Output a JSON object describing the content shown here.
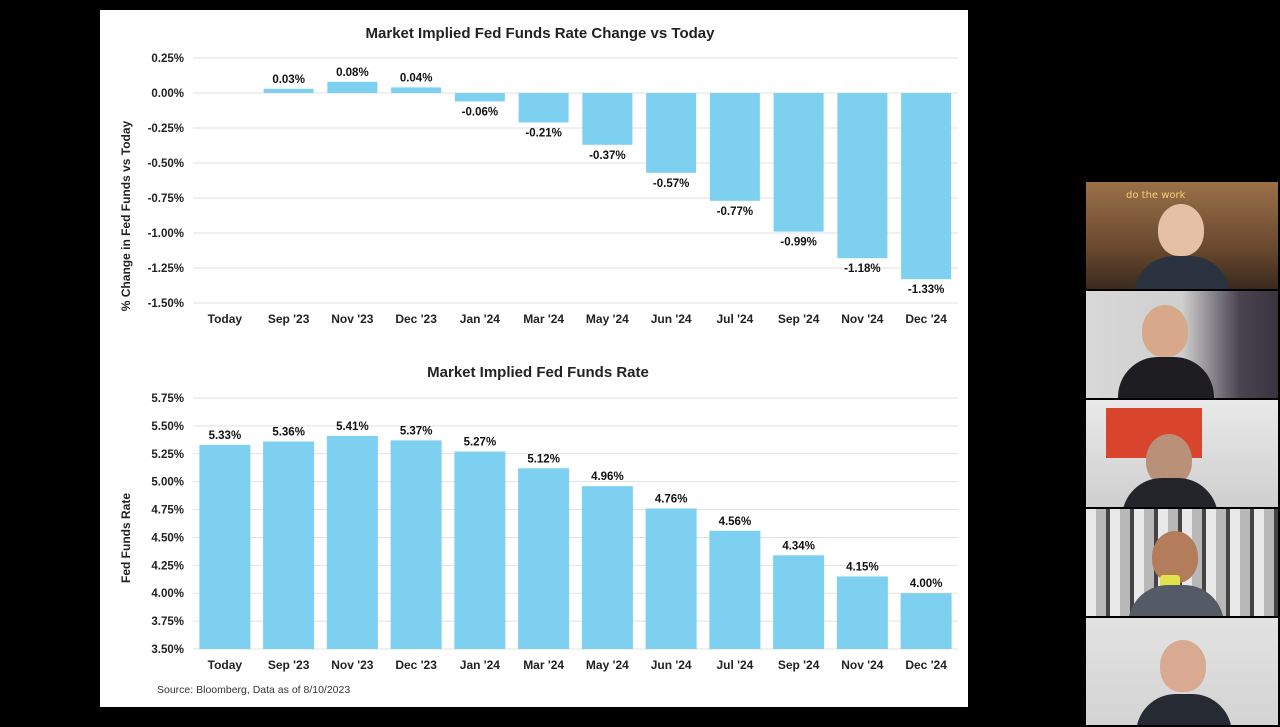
{
  "source_note": "Source: Bloomberg, Data as of 8/10/2023",
  "participants": [
    {
      "name": "participant-1",
      "sign_text": "do the work"
    },
    {
      "name": "participant-2"
    },
    {
      "name": "participant-3"
    },
    {
      "name": "participant-4"
    },
    {
      "name": "participant-5"
    }
  ],
  "chart_data": [
    {
      "type": "bar",
      "title": "Market Implied Fed Funds Rate Change vs Today",
      "ylabel": "% Change in Fed Funds vs Today",
      "xlabel": "",
      "categories": [
        "Today",
        "Sep '23",
        "Nov '23",
        "Dec '23",
        "Jan '24",
        "Mar '24",
        "May '24",
        "Jun '24",
        "Jul '24",
        "Sep '24",
        "Nov '24",
        "Dec '24"
      ],
      "values": [
        0,
        0.03,
        0.08,
        0.04,
        -0.06,
        -0.21,
        -0.37,
        -0.57,
        -0.77,
        -0.99,
        -1.18,
        -1.33
      ],
      "data_labels": [
        "",
        "0.03%",
        "0.08%",
        "0.04%",
        "-0.06%",
        "-0.21%",
        "-0.37%",
        "-0.57%",
        "-0.77%",
        "-0.99%",
        "-1.18%",
        "-1.33%"
      ],
      "yticks": [
        "0.25%",
        "0.00%",
        "-0.25%",
        "-0.50%",
        "-0.75%",
        "-1.00%",
        "-1.25%",
        "-1.50%"
      ],
      "ylim": [
        -1.5,
        0.25
      ],
      "color": "#7dd0f0",
      "grid": true
    },
    {
      "type": "bar",
      "title": "Market Implied Fed Funds Rate",
      "ylabel": "Fed Funds Rate",
      "xlabel": "",
      "categories": [
        "Today",
        "Sep '23",
        "Nov '23",
        "Dec '23",
        "Jan '24",
        "Mar '24",
        "May '24",
        "Jun '24",
        "Jul '24",
        "Sep '24",
        "Nov '24",
        "Dec '24"
      ],
      "values": [
        5.33,
        5.36,
        5.41,
        5.37,
        5.27,
        5.12,
        4.96,
        4.76,
        4.56,
        4.34,
        4.15,
        4.0
      ],
      "data_labels": [
        "5.33%",
        "5.36%",
        "5.41%",
        "5.37%",
        "5.27%",
        "5.12%",
        "4.96%",
        "4.76%",
        "4.56%",
        "4.34%",
        "4.15%",
        "4.00%"
      ],
      "yticks": [
        "5.75%",
        "5.50%",
        "5.25%",
        "5.00%",
        "4.75%",
        "4.50%",
        "4.25%",
        "4.00%",
        "3.75%",
        "3.50%"
      ],
      "ylim": [
        3.5,
        5.75
      ],
      "color": "#7dd0f0",
      "grid": true
    }
  ]
}
